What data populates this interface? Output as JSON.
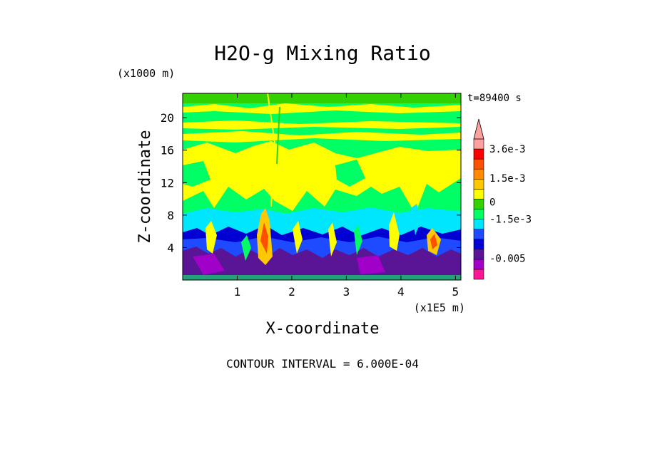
{
  "chart_data": {
    "type": "heatmap",
    "title": "H2O-g Mixing Ratio",
    "xlabel": "X-coordinate",
    "ylabel": "Z-coordinate",
    "x_units": "(x1E5 m)",
    "y_units": "(x1000 m)",
    "time_label": "t=89400 s",
    "footer": "CONTOUR INTERVAL = 6.000E-04",
    "xlim": [
      0,
      5.1
    ],
    "ylim": [
      0,
      23
    ],
    "x_ticks": [
      "1",
      "2",
      "3",
      "4",
      "5"
    ],
    "y_ticks": [
      "4",
      "8",
      "12",
      "16",
      "20"
    ],
    "colorbar": {
      "tick_labels": [
        "3.6e-3",
        "1.5e-3",
        "0",
        "-1.5e-3",
        "-0.005"
      ],
      "colors": [
        "#ff1493",
        "#a000c8",
        "#5a1496",
        "#0000d2",
        "#1e4bff",
        "#00e6ff",
        "#00ff64",
        "#32d200",
        "#ffff00",
        "#ffc800",
        "#ff8c00",
        "#ff5000",
        "#ff0000",
        "#ffa0a0"
      ],
      "extend": "max"
    },
    "field_bands": [
      {
        "z_range": [
          0,
          3.5
        ],
        "dominant_color": "#5a1496"
      },
      {
        "z_range": [
          3.5,
          6
        ],
        "dominant_color": "#0000d2"
      },
      {
        "z_range": [
          6,
          8.5
        ],
        "dominant_color": "#00e6ff"
      },
      {
        "z_range": [
          8.5,
          12
        ],
        "dominant_color": "#00ff64"
      },
      {
        "z_range": [
          12,
          18
        ],
        "dominant_color": "#ffff00"
      },
      {
        "z_range": [
          18,
          23
        ],
        "dominant_color": "#00ff64"
      }
    ]
  }
}
